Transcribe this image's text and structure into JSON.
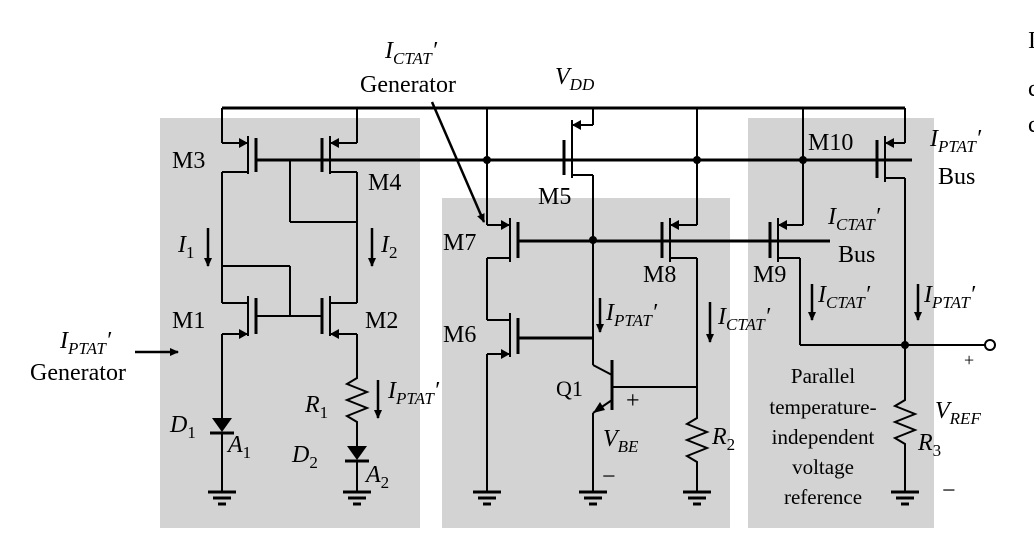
{
  "labels": {
    "ictat_gen_top": "I",
    "ictat_gen_sub": "CTAT",
    "prime": "′",
    "generator": "Generator",
    "vdd_v": "V",
    "vdd_sub": "DD",
    "m1": "M1",
    "m2": "M2",
    "m3": "M3",
    "m4": "M4",
    "m5": "M5",
    "m6": "M6",
    "m7": "M7",
    "m8": "M8",
    "m9": "M9",
    "m10": "M10",
    "i1": "I",
    "i1_sub": "1",
    "i2": "I",
    "i2_sub": "2",
    "iptat": "I",
    "iptat_sub": "PTAT",
    "ictat": "I",
    "ictat_sub": "CTAT",
    "bus": "Bus",
    "d1": "D",
    "d1_sub": "1",
    "d2": "D",
    "d2_sub": "2",
    "a1": "A",
    "a1_sub": "1",
    "a2": "A",
    "a2_sub": "2",
    "r1": "R",
    "r1_sub": "1",
    "r2": "R",
    "r2_sub": "2",
    "r3": "R",
    "r3_sub": "3",
    "q1": "Q1",
    "vbe": "V",
    "vbe_sub": "BE",
    "vref": "V",
    "vref_sub": "REF",
    "plus": "+",
    "minus": "−",
    "parallel_1": "Parallel",
    "parallel_2": "temperature-",
    "parallel_3": "independent",
    "parallel_4": "voltage",
    "parallel_5": "reference",
    "cut_1": "I",
    "cut_2": "c",
    "cut_3": "c"
  }
}
